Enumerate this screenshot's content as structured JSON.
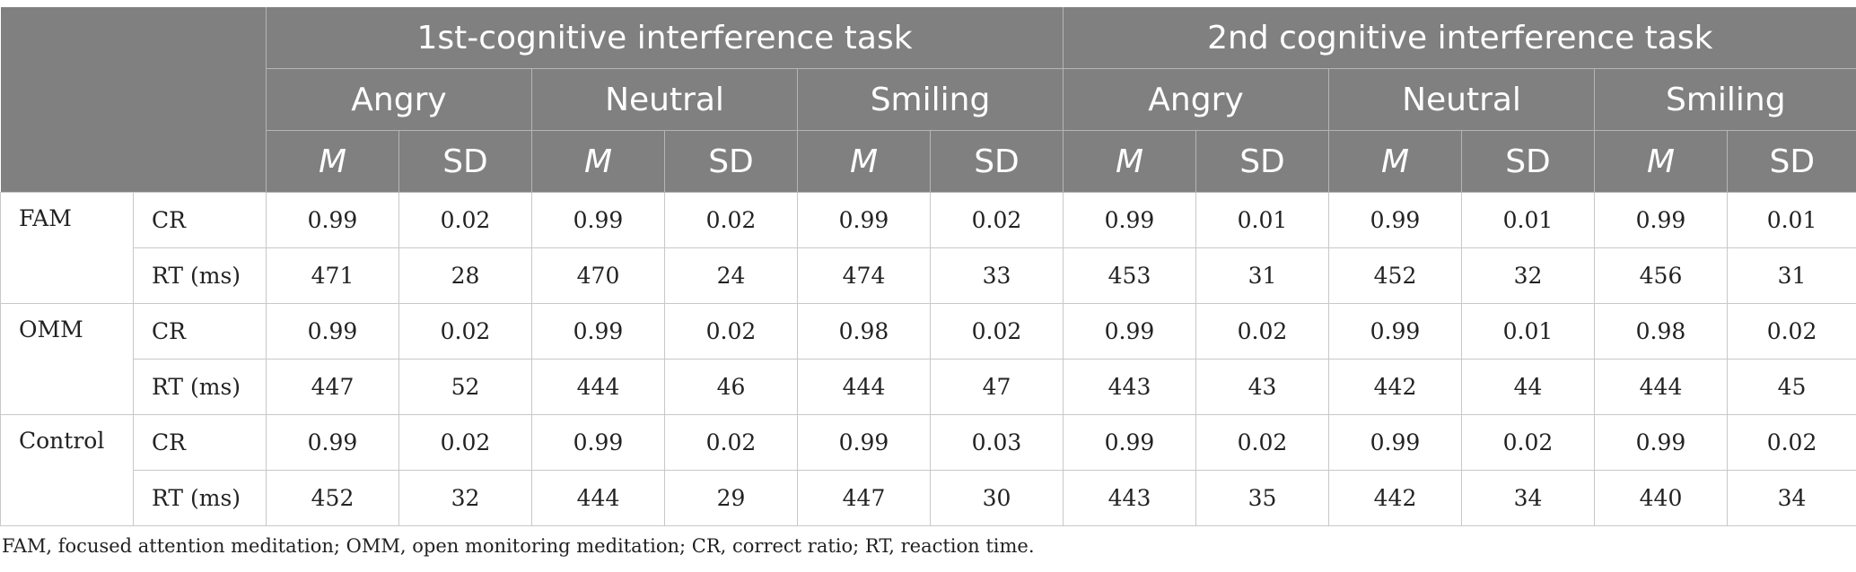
{
  "header": {
    "tasks": [
      "1st-cognitive interference task",
      "2nd cognitive interference task"
    ],
    "conditions": [
      "Angry",
      "Neutral",
      "Smiling",
      "Angry",
      "Neutral",
      "Smiling"
    ],
    "stats": [
      "M",
      "SD",
      "M",
      "SD",
      "M",
      "SD",
      "M",
      "SD",
      "M",
      "SD",
      "M",
      "SD"
    ]
  },
  "rows": [
    {
      "group": "FAM",
      "measure": "CR",
      "values": [
        "0.99",
        "0.02",
        "0.99",
        "0.02",
        "0.99",
        "0.02",
        "0.99",
        "0.01",
        "0.99",
        "0.01",
        "0.99",
        "0.01"
      ]
    },
    {
      "group": "",
      "measure": "RT (ms)",
      "values": [
        "471",
        "28",
        "470",
        "24",
        "474",
        "33",
        "453",
        "31",
        "452",
        "32",
        "456",
        "31"
      ]
    },
    {
      "group": "OMM",
      "measure": "CR",
      "values": [
        "0.99",
        "0.02",
        "0.99",
        "0.02",
        "0.98",
        "0.02",
        "0.99",
        "0.02",
        "0.99",
        "0.01",
        "0.98",
        "0.02"
      ]
    },
    {
      "group": "",
      "measure": "RT (ms)",
      "values": [
        "447",
        "52",
        "444",
        "46",
        "444",
        "47",
        "443",
        "43",
        "442",
        "44",
        "444",
        "45"
      ]
    },
    {
      "group": "Control",
      "measure": "CR",
      "values": [
        "0.99",
        "0.02",
        "0.99",
        "0.02",
        "0.99",
        "0.03",
        "0.99",
        "0.02",
        "0.99",
        "0.02",
        "0.99",
        "0.02"
      ]
    },
    {
      "group": "",
      "measure": "RT (ms)",
      "values": [
        "452",
        "32",
        "444",
        "29",
        "447",
        "30",
        "443",
        "35",
        "442",
        "34",
        "440",
        "34"
      ]
    }
  ],
  "footnote": "FAM, focused attention meditation; OMM, open monitoring meditation; CR, correct ratio; RT, reaction time."
}
